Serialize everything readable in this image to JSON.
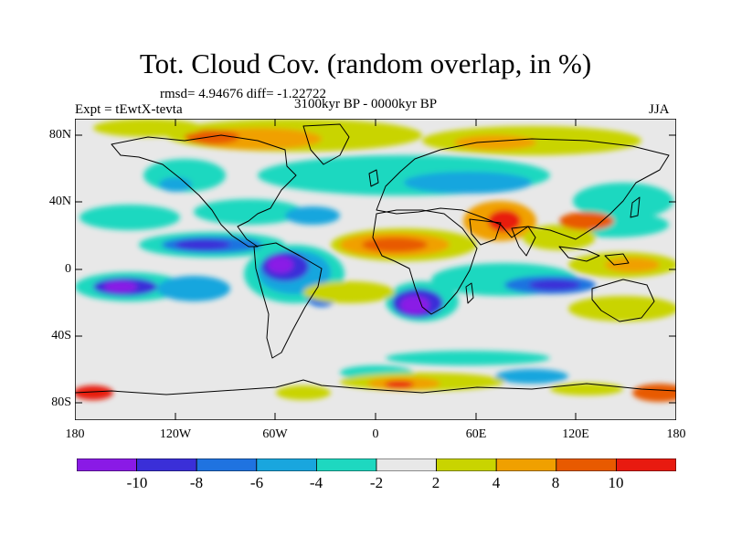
{
  "title": "Tot. Cloud Cov. (random overlap, in %)",
  "stats": "rmsd= 4.94676 diff= -1.22722",
  "experiment": "Expt = tEwtX-tevta",
  "period": "3100kyr BP - 0000kyr BP",
  "season": "JJA",
  "map": {
    "projection": "cylindrical equidistant",
    "lat_ticks": [
      "80N",
      "40N",
      "0",
      "40S",
      "80S"
    ],
    "lat_values": [
      80,
      40,
      0,
      -40,
      -80
    ],
    "lon_ticks": [
      "180",
      "120W",
      "60W",
      "0",
      "60E",
      "120E",
      "180"
    ],
    "lon_values": [
      -180,
      -120,
      -60,
      0,
      60,
      120,
      180
    ],
    "lat_range": [
      -90,
      90
    ],
    "lon_range": [
      -180,
      180
    ]
  },
  "colorbar": {
    "labels": [
      "-10",
      "-8",
      "-6",
      "-4",
      "-2",
      "2",
      "4",
      "8",
      "10"
    ],
    "colors": [
      "#8a1ae6",
      "#3a2fd8",
      "#1f73e0",
      "#19a6de",
      "#1ed8c0",
      "#e8e8e8",
      "#c9d400",
      "#f0a000",
      "#e85a00",
      "#e81a10"
    ]
  },
  "colors": {
    "background": "#ffffff",
    "neutral": "#e8e8e8",
    "coastline": "#000000"
  }
}
